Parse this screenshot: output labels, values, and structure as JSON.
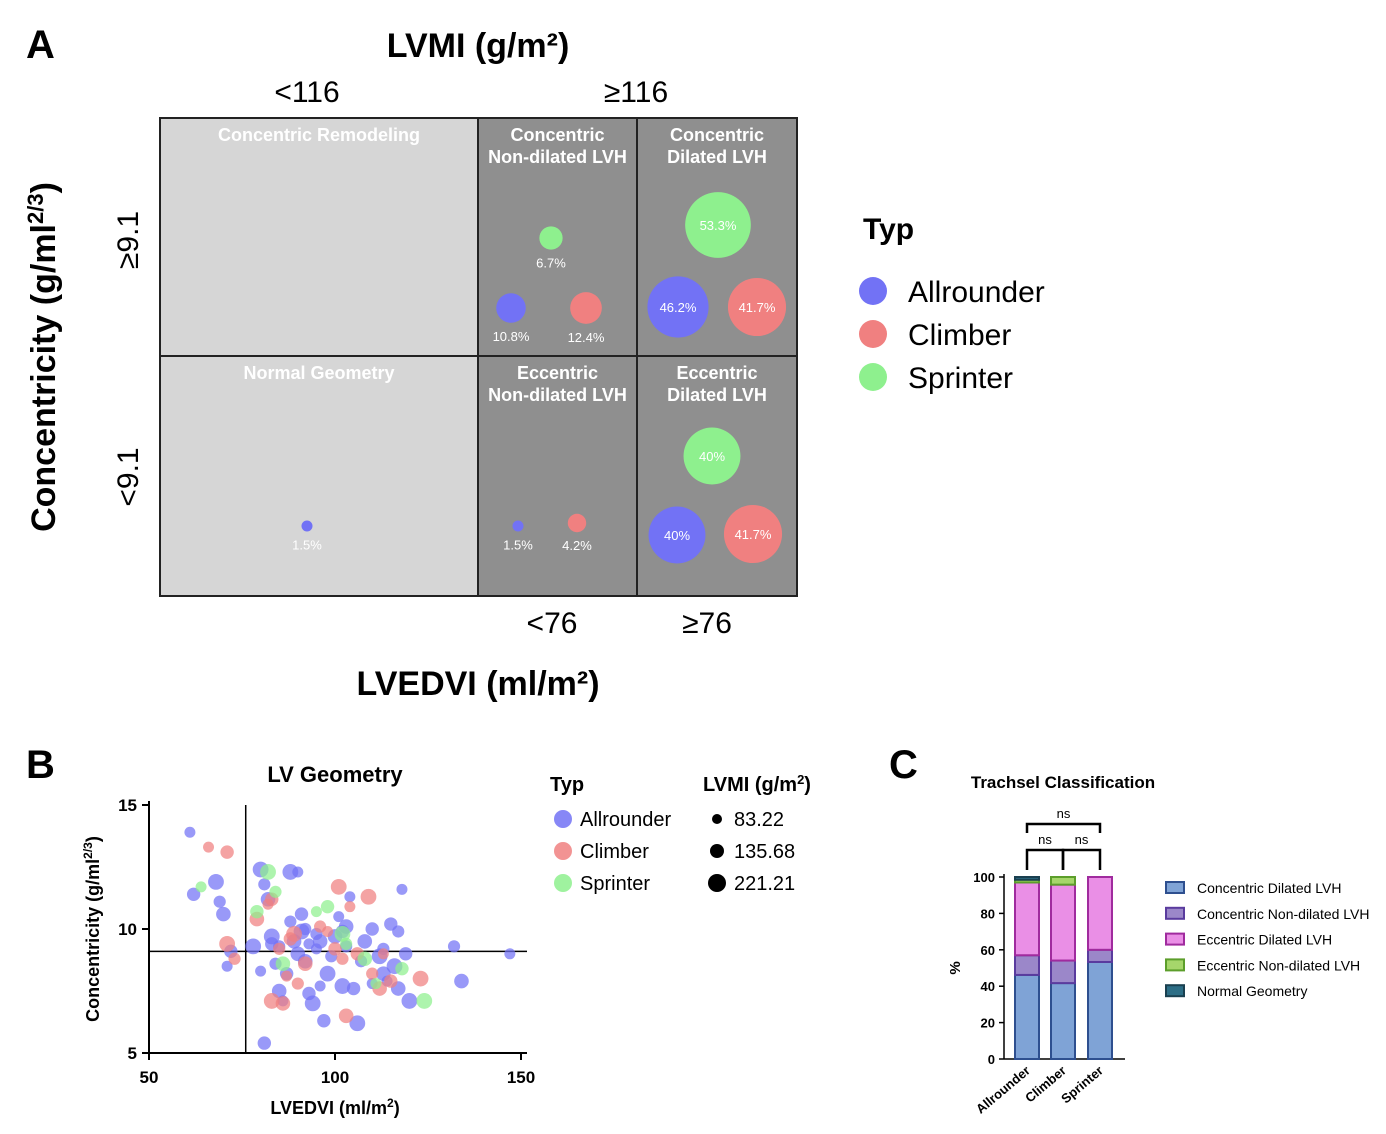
{
  "panel_labels": {
    "a": "A",
    "b": "B",
    "c": "C"
  },
  "chart_data": [
    {
      "panel": "A",
      "type": "bubble-matrix",
      "top_axis_title": "LVMI (g/m²)",
      "top_ticks": [
        "<116",
        "≥116"
      ],
      "left_axis_title": "Concentricity (g/ml",
      "left_axis_title_sup": "2/3",
      "left_axis_title_end": ")",
      "left_ticks": [
        "≥9.1",
        "<9.1"
      ],
      "bottom_axis_title": "LVEDVI (ml/m²)",
      "bottom_ticks": [
        "<76",
        "≥76"
      ],
      "cells": [
        {
          "title": [
            "Concentric Remodeling"
          ],
          "bubbles": []
        },
        {
          "title": [
            "Concentric",
            "Non-dilated LVH"
          ],
          "bubbles": [
            {
              "group": "Sprinter",
              "value": 6.7,
              "label": "6.7%"
            },
            {
              "group": "Allrounder",
              "value": 10.8,
              "label": "10.8%"
            },
            {
              "group": "Climber",
              "value": 12.4,
              "label": "12.4%"
            }
          ]
        },
        {
          "title": [
            "Concentric",
            "Dilated LVH"
          ],
          "bubbles": [
            {
              "group": "Sprinter",
              "value": 53.3,
              "label": "53.3%"
            },
            {
              "group": "Allrounder",
              "value": 46.2,
              "label": "46.2%"
            },
            {
              "group": "Climber",
              "value": 41.7,
              "label": "41.7%"
            }
          ]
        },
        {
          "title": [
            "Normal Geometry"
          ],
          "bubbles": [
            {
              "group": "Allrounder",
              "value": 1.5,
              "label": "1.5%"
            }
          ]
        },
        {
          "title": [
            "Eccentric",
            "Non-dilated LVH"
          ],
          "bubbles": [
            {
              "group": "Allrounder",
              "value": 1.5,
              "label": "1.5%"
            },
            {
              "group": "Climber",
              "value": 4.2,
              "label": "4.2%"
            }
          ]
        },
        {
          "title": [
            "Eccentric",
            "Dilated LVH"
          ],
          "bubbles": [
            {
              "group": "Sprinter",
              "value": 40,
              "label": "40%"
            },
            {
              "group": "Allrounder",
              "value": 40,
              "label": "40%"
            },
            {
              "group": "Climber",
              "value": 41.7,
              "label": "41.7%"
            }
          ]
        }
      ],
      "legend_title": "Typ",
      "legend": [
        "Allrounder",
        "Climber",
        "Sprinter"
      ]
    },
    {
      "panel": "B",
      "type": "scatter",
      "title": "LV Geometry",
      "xlabel": "LVEDVI (ml/m",
      "xlabel_sup": "2",
      "xlabel_end": ")",
      "ylabel": "Concentricity (g/ml",
      "ylabel_sup": "2/3",
      "ylabel_end": ")",
      "xlim": [
        50,
        150
      ],
      "ylim": [
        5,
        15
      ],
      "xticks": [
        50,
        100,
        150
      ],
      "yticks": [
        5,
        10,
        15
      ],
      "ref_x": 76,
      "ref_y": 9.1,
      "legend_title": "Typ",
      "size_legend_title": "LVMI (g/m",
      "size_legend_title_sup": "2",
      "size_legend_title_end": ")",
      "size_legend": [
        "83.22",
        "135.68",
        "221.21"
      ],
      "series": [
        {
          "name": "Allrounder",
          "points": [
            [
              61,
              13.9
            ],
            [
              62,
              11.4
            ],
            [
              68,
              11.9
            ],
            [
              69,
              11.1
            ],
            [
              70,
              10.6
            ],
            [
              71,
              8.5
            ],
            [
              72,
              9.1
            ],
            [
              80,
              12.4
            ],
            [
              81,
              11.8
            ],
            [
              82,
              11.2
            ],
            [
              80,
              8.3
            ],
            [
              83,
              9.4
            ],
            [
              83,
              9.7
            ],
            [
              84,
              8.6
            ],
            [
              85,
              7.5
            ],
            [
              86,
              7.1
            ],
            [
              87,
              8.2
            ],
            [
              88,
              12.3
            ],
            [
              88,
              10.3
            ],
            [
              89,
              9.5
            ],
            [
              90,
              12.3
            ],
            [
              91,
              10.6
            ],
            [
              91,
              9.9
            ],
            [
              92,
              10.0
            ],
            [
              92,
              8.7
            ],
            [
              93,
              9.4
            ],
            [
              93,
              7.4
            ],
            [
              94,
              7.0
            ],
            [
              95,
              9.8
            ],
            [
              96,
              9.5
            ],
            [
              96,
              7.7
            ],
            [
              97,
              6.3
            ],
            [
              98,
              8.2
            ],
            [
              99,
              8.9
            ],
            [
              100,
              9.7
            ],
            [
              101,
              10.5
            ],
            [
              102,
              9.9
            ],
            [
              102,
              7.7
            ],
            [
              103,
              9.3
            ],
            [
              103,
              10.1
            ],
            [
              104,
              11.3
            ],
            [
              105,
              7.6
            ],
            [
              106,
              6.2
            ],
            [
              107,
              8.7
            ],
            [
              108,
              9.5
            ],
            [
              110,
              7.8
            ],
            [
              110,
              10.0
            ],
            [
              112,
              8.9
            ],
            [
              113,
              9.2
            ],
            [
              113,
              8.2
            ],
            [
              114,
              7.9
            ],
            [
              115,
              10.2
            ],
            [
              116,
              8.5
            ],
            [
              117,
              9.9
            ],
            [
              117,
              7.6
            ],
            [
              118,
              11.6
            ],
            [
              119,
              9.0
            ],
            [
              120,
              7.1
            ],
            [
              132,
              9.3
            ],
            [
              134,
              7.9
            ],
            [
              147,
              9.0
            ],
            [
              81,
              5.4
            ],
            [
              78,
              9.3
            ],
            [
              85,
              9.3
            ],
            [
              90,
              9.0
            ],
            [
              95,
              9.2
            ]
          ]
        },
        {
          "name": "Climber",
          "points": [
            [
              66,
              13.3
            ],
            [
              71,
              13.1
            ],
            [
              71,
              9.4
            ],
            [
              73,
              8.8
            ],
            [
              79,
              10.4
            ],
            [
              82,
              11.0
            ],
            [
              83,
              11.2
            ],
            [
              83,
              7.1
            ],
            [
              85,
              9.2
            ],
            [
              86,
              7.0
            ],
            [
              87,
              8.1
            ],
            [
              88,
              9.6
            ],
            [
              89,
              9.8
            ],
            [
              90,
              7.8
            ],
            [
              92,
              8.6
            ],
            [
              98,
              9.9
            ],
            [
              100,
              9.2
            ],
            [
              101,
              11.7
            ],
            [
              102,
              8.8
            ],
            [
              103,
              6.5
            ],
            [
              104,
              10.9
            ],
            [
              106,
              9.0
            ],
            [
              109,
              11.3
            ],
            [
              110,
              8.2
            ],
            [
              112,
              7.6
            ],
            [
              113,
              9.0
            ],
            [
              115,
              7.9
            ],
            [
              123,
              8.0
            ],
            [
              96,
              10.1
            ]
          ]
        },
        {
          "name": "Sprinter",
          "points": [
            [
              64,
              11.7
            ],
            [
              79,
              10.7
            ],
            [
              82,
              12.3
            ],
            [
              84,
              11.5
            ],
            [
              86,
              8.6
            ],
            [
              95,
              10.7
            ],
            [
              98,
              10.9
            ],
            [
              102,
              9.8
            ],
            [
              103,
              9.4
            ],
            [
              108,
              8.8
            ],
            [
              111,
              7.8
            ],
            [
              118,
              8.4
            ],
            [
              124,
              7.1
            ]
          ]
        }
      ]
    },
    {
      "panel": "C",
      "type": "stacked-bar",
      "title": "Trachsel Classification",
      "ylabel": "%",
      "ylim": [
        0,
        100
      ],
      "yticks": [
        0,
        20,
        40,
        60,
        80,
        100
      ],
      "categories": [
        "Allrounder",
        "Climber",
        "Sprinter"
      ],
      "significance": [
        "ns",
        "ns",
        "ns"
      ],
      "series": [
        {
          "name": "Concentric Dilated LVH",
          "values": [
            46.2,
            41.7,
            53.3
          ]
        },
        {
          "name": "Concentric Non-dilated LVH",
          "values": [
            10.8,
            12.4,
            6.7
          ]
        },
        {
          "name": "Eccentric Dilated LVH",
          "values": [
            40.0,
            41.7,
            40.0
          ]
        },
        {
          "name": "Eccentric Non-dilated LVH",
          "values": [
            1.5,
            4.2,
            0
          ]
        },
        {
          "name": "Normal Geometry",
          "values": [
            1.5,
            0,
            0
          ]
        }
      ]
    }
  ],
  "colors": {
    "Allrounder": "#7272f5",
    "Climber": "#f08080",
    "Sprinter": "#8ef08e",
    "light_cell": "#d6d6d6",
    "dark_cell": "#8f8f8f",
    "stack": [
      "#7fa3d6",
      "#9b87c9",
      "#ea8fe6",
      "#a6d66b",
      "#2d6e86"
    ],
    "stack_border": [
      "#2e4f8f",
      "#5a3b9e",
      "#a02b9e",
      "#5c9e2b",
      "#1a4050"
    ]
  }
}
